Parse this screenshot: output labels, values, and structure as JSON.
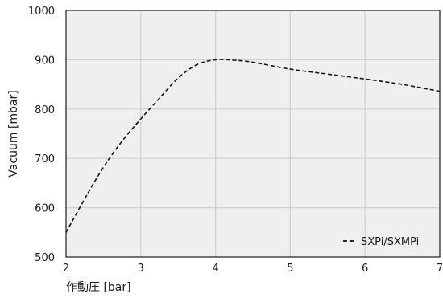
{
  "chart_data": {
    "type": "line",
    "title": "",
    "xlabel": "作動圧 [bar]",
    "ylabel": "Vacuum [mbar]",
    "xlim": [
      2,
      7
    ],
    "ylim": [
      500,
      1000
    ],
    "xticks": [
      2,
      3,
      4,
      5,
      6,
      7
    ],
    "yticks": [
      500,
      600,
      700,
      800,
      900,
      1000
    ],
    "grid": true,
    "legend_position": "bottom-right",
    "series": [
      {
        "name": "SXPi/SXMPi",
        "line_style": "dashed",
        "color": "#111111",
        "x": [
          2.0,
          2.25,
          2.5,
          2.75,
          3.0,
          3.25,
          3.5,
          3.75,
          4.0,
          4.25,
          4.5,
          5.0,
          5.5,
          6.0,
          6.5,
          7.0
        ],
        "y": [
          550,
          618,
          682,
          735,
          780,
          822,
          863,
          890,
          900,
          899,
          895,
          881,
          871,
          861,
          850,
          836
        ]
      }
    ]
  }
}
